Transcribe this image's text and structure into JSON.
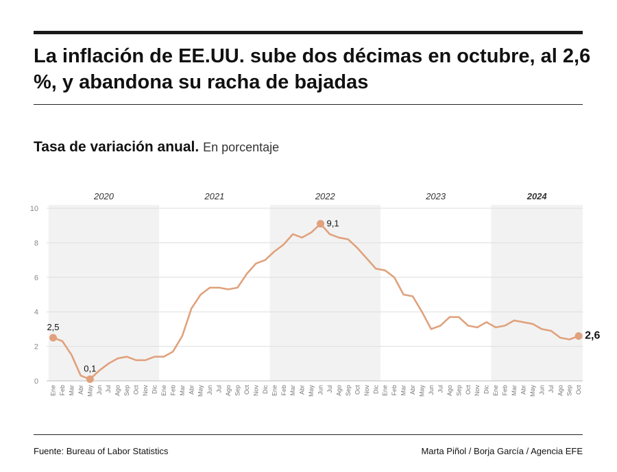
{
  "header": {
    "title": "La inflación de EE.UU. sube dos décimas en octubre, al 2,6 %, y abandona su racha de bajadas"
  },
  "subtitle": {
    "main": "Tasa de variación anual.",
    "unit": "En porcentaje"
  },
  "footer": {
    "source": "Fuente: Bureau of Labor Statistics",
    "credit": "Marta Piñol / Borja García / Agencia EFE"
  },
  "colors": {
    "line": "#e0a17c",
    "band": "#f2f2f2",
    "grid": "#dddddd",
    "text": "#111111"
  },
  "chart_data": {
    "type": "line",
    "ylim": [
      0,
      10
    ],
    "yticks": [
      "0",
      "2",
      "4",
      "6",
      "8",
      "10"
    ],
    "grid": true,
    "years": [
      {
        "label": "2020",
        "bold": false
      },
      {
        "label": "2021",
        "bold": false
      },
      {
        "label": "2022",
        "bold": false
      },
      {
        "label": "2023",
        "bold": false
      },
      {
        "label": "2024",
        "bold": true
      }
    ],
    "month_labels": [
      "Ene",
      "Feb",
      "Mar",
      "Abr",
      "May",
      "Jun",
      "Jul",
      "Ago",
      "Sep",
      "Oct",
      "Nov",
      "Dic"
    ],
    "x": [
      "2020-01",
      "2020-02",
      "2020-03",
      "2020-04",
      "2020-05",
      "2020-06",
      "2020-07",
      "2020-08",
      "2020-09",
      "2020-10",
      "2020-11",
      "2020-12",
      "2021-01",
      "2021-02",
      "2021-03",
      "2021-04",
      "2021-05",
      "2021-06",
      "2021-07",
      "2021-08",
      "2021-09",
      "2021-10",
      "2021-11",
      "2021-12",
      "2022-01",
      "2022-02",
      "2022-03",
      "2022-04",
      "2022-05",
      "2022-06",
      "2022-07",
      "2022-08",
      "2022-09",
      "2022-10",
      "2022-11",
      "2022-12",
      "2023-01",
      "2023-02",
      "2023-03",
      "2023-04",
      "2023-05",
      "2023-06",
      "2023-07",
      "2023-08",
      "2023-09",
      "2023-10",
      "2023-11",
      "2023-12",
      "2024-01",
      "2024-02",
      "2024-03",
      "2024-04",
      "2024-05",
      "2024-06",
      "2024-07",
      "2024-08",
      "2024-09",
      "2024-10"
    ],
    "series": [
      {
        "values": [
          2.5,
          2.3,
          1.5,
          0.3,
          0.1,
          0.6,
          1.0,
          1.3,
          1.4,
          1.2,
          1.2,
          1.4,
          1.4,
          1.7,
          2.6,
          4.2,
          5.0,
          5.4,
          5.4,
          5.3,
          5.4,
          6.2,
          6.8,
          7.0,
          7.5,
          7.9,
          8.5,
          8.3,
          8.6,
          9.1,
          8.5,
          8.3,
          8.2,
          7.7,
          7.1,
          6.5,
          6.4,
          6.0,
          5.0,
          4.9,
          4.0,
          3.0,
          3.2,
          3.7,
          3.7,
          3.2,
          3.1,
          3.4,
          3.1,
          3.2,
          3.5,
          3.4,
          3.3,
          3.0,
          2.9,
          2.5,
          2.4,
          2.6
        ]
      }
    ],
    "annotations": [
      {
        "index": 0,
        "text": "2,5",
        "position": "above",
        "bold": false
      },
      {
        "index": 4,
        "text": "0,1",
        "position": "above",
        "bold": false
      },
      {
        "index": 29,
        "text": "9,1",
        "position": "right",
        "bold": false
      },
      {
        "index": 57,
        "text": "2,6",
        "position": "right",
        "bold": true
      }
    ]
  }
}
